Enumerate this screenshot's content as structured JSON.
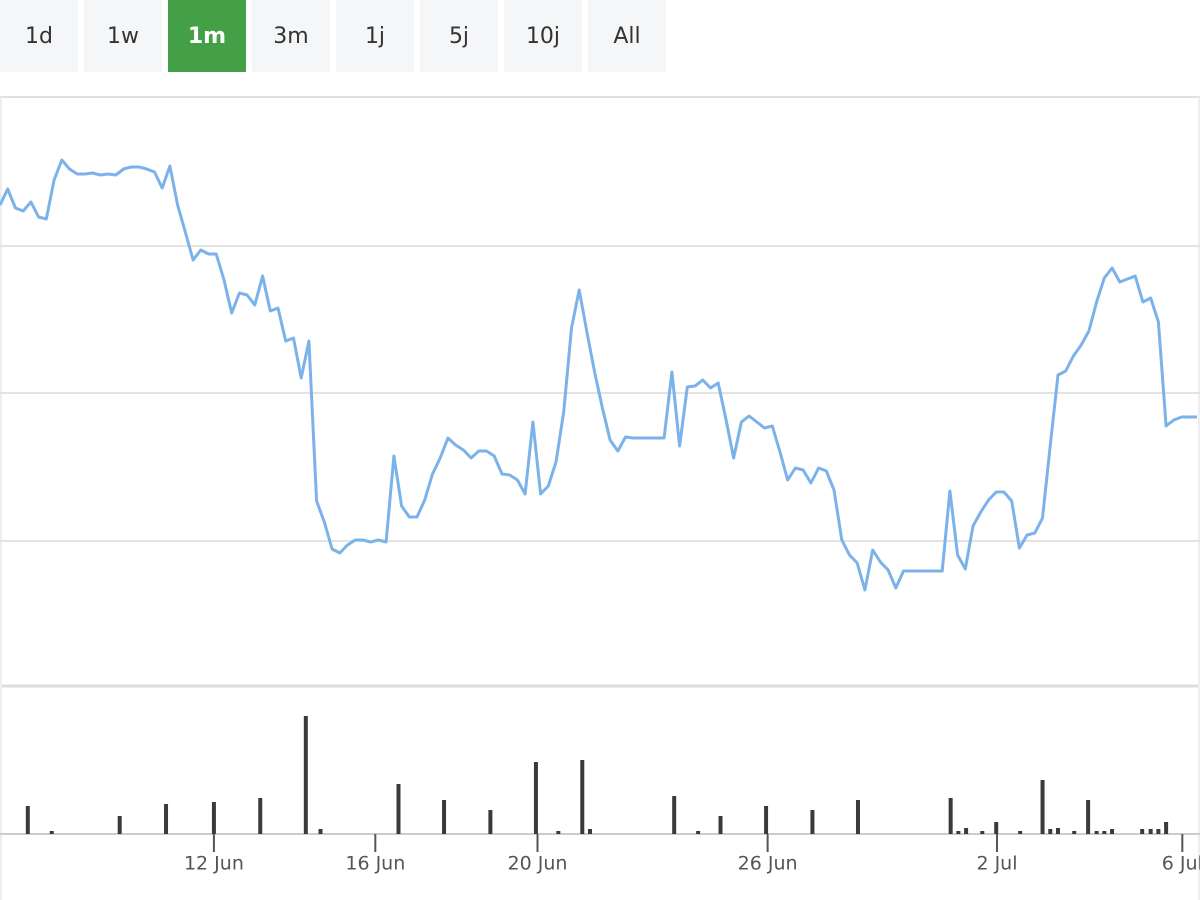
{
  "buttons": [
    "1d",
    "1w",
    "1m",
    "3m",
    "1j",
    "5j",
    "10j",
    "All"
  ],
  "active_button": 2,
  "chart_data": [
    {
      "type": "line",
      "color": "#7cb2ea",
      "xlim": [
        0,
        155
      ],
      "ylim": [
        4,
        592
      ],
      "y_grid": [
        149,
        297,
        444
      ],
      "values": [
        485,
        501,
        482,
        479,
        488,
        473,
        471,
        510,
        530,
        521,
        516,
        516,
        517,
        515,
        516,
        515,
        521,
        523,
        523,
        521,
        518,
        502,
        524,
        485,
        458,
        430,
        440,
        436,
        436,
        410,
        377,
        397,
        395,
        385,
        414,
        379,
        382,
        349,
        352,
        312,
        349,
        189,
        168,
        141,
        137,
        145,
        150,
        150,
        148,
        150,
        148,
        234,
        184,
        173,
        173,
        190,
        216,
        232,
        252,
        245,
        240,
        232,
        239,
        239,
        234,
        216,
        215,
        210,
        196,
        268,
        196,
        204,
        228,
        278,
        362,
        400,
        358,
        318,
        282,
        250,
        239,
        253,
        252,
        252,
        252,
        252,
        252,
        318,
        244,
        303,
        304,
        310,
        302,
        307,
        271,
        232,
        268,
        274,
        268,
        262,
        264,
        238,
        210,
        222,
        220,
        207,
        222,
        219,
        200,
        150,
        135,
        127,
        100,
        140,
        128,
        120,
        102,
        119,
        119,
        119,
        119,
        119,
        119,
        199,
        135,
        121,
        164,
        178,
        190,
        198,
        198,
        189,
        142,
        155,
        157,
        172,
        245,
        315,
        319,
        334,
        345,
        359,
        388,
        412,
        422,
        408,
        411,
        414,
        388,
        392,
        368,
        264,
        270,
        273,
        273,
        273
      ]
    },
    {
      "type": "bar",
      "color": "#3a3a3a",
      "xlim": [
        0,
        155
      ],
      "ylim": [
        0,
        120
      ],
      "x": [
        3.6,
        6.7,
        15.5,
        21.5,
        27.7,
        33.7,
        39.6,
        41.5,
        51.6,
        57.5,
        63.5,
        69.4,
        72.3,
        75.4,
        76.4,
        87.3,
        90.4,
        93.3,
        99.2,
        105.2,
        111.1,
        123.1,
        124.1,
        125.1,
        127.2,
        129.0,
        132.1,
        135.0,
        136.0,
        137.0,
        139.1,
        140.9,
        142.0,
        143.0,
        144.0,
        147.9,
        149.0,
        150.0,
        151.0
      ],
      "values": [
        28,
        3,
        18,
        30,
        32,
        36,
        118,
        5,
        50,
        34,
        24,
        72,
        3,
        74,
        5,
        38,
        3,
        18,
        28,
        24,
        34,
        36,
        3,
        6,
        3,
        12,
        3,
        54,
        5,
        6,
        3,
        34,
        3,
        3,
        5,
        5,
        5,
        5,
        12
      ],
      "xticks": [
        {
          "value": 27.7,
          "label": "12 Jun"
        },
        {
          "value": 48.6,
          "label": "16 Jun"
        },
        {
          "value": 69.6,
          "label": "20 Jun"
        },
        {
          "value": 99.4,
          "label": "26 Jun"
        },
        {
          "value": 129.1,
          "label": "2 Jul"
        },
        {
          "value": 153.1,
          "label": "6 Jul"
        }
      ]
    }
  ]
}
